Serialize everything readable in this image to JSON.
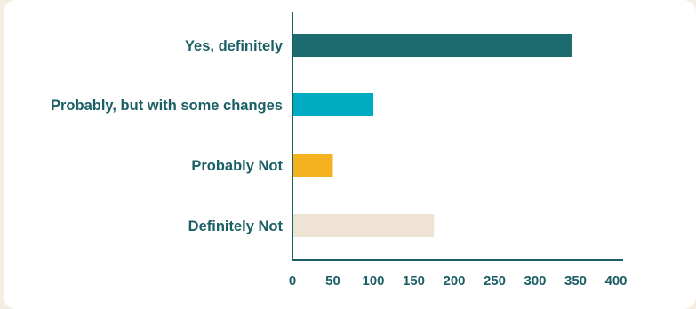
{
  "chart_data": {
    "type": "bar",
    "orientation": "horizontal",
    "title": "",
    "xlabel": "",
    "ylabel": "",
    "categories": [
      "Yes, definitely",
      "Probably, but with some changes",
      "Probably Not",
      "Definitely Not"
    ],
    "values": [
      345,
      100,
      50,
      175
    ],
    "colors": [
      "#1b6b6f",
      "#00acc1",
      "#f4b120",
      "#efe3d3"
    ],
    "xlim": [
      0,
      400
    ],
    "xticks": [
      0,
      50,
      100,
      150,
      200,
      250,
      300,
      350,
      400
    ],
    "grid": false,
    "legend": "none"
  }
}
